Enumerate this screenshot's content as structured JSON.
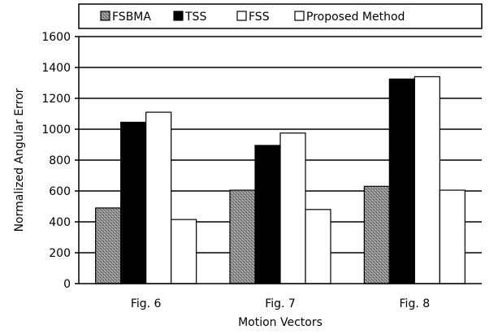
{
  "chart_data": {
    "type": "bar",
    "categories": [
      "Fig. 6",
      "Fig. 7",
      "Fig. 8"
    ],
    "series": [
      {
        "name": "FSBMA",
        "values": [
          490,
          605,
          630
        ],
        "color": "#9a9a9a",
        "pattern": "stipple"
      },
      {
        "name": "TSS",
        "values": [
          1045,
          895,
          1325
        ],
        "color": "#000000",
        "pattern": "solid"
      },
      {
        "name": "FSS",
        "values": [
          1110,
          975,
          1340
        ],
        "color": "#ffffff",
        "pattern": "solid"
      },
      {
        "name": "Proposed Method",
        "values": [
          415,
          480,
          605
        ],
        "color": "#ffffff",
        "pattern": "solid"
      }
    ],
    "title": "",
    "xlabel": "Motion Vectors",
    "ylabel": "Normalized Angular Error",
    "ylim": [
      0,
      1600
    ],
    "yticks": [
      0,
      200,
      400,
      600,
      800,
      1000,
      1200,
      1400,
      1600
    ],
    "grid": true,
    "legend": "top"
  }
}
